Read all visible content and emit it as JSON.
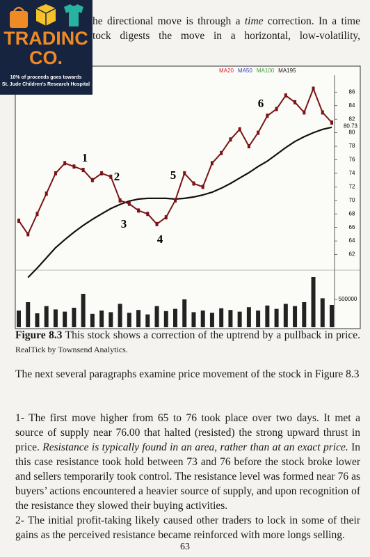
{
  "logo": {
    "name_line1": "TRADINC",
    "name_line2": "CO.",
    "tagline_line1": "10% of proceeds goes towards",
    "tagline_line2": "St. Jude Children's Research Hospital"
  },
  "top_text": {
    "line1": [
      "he directional move is through a ",
      "time",
      " correction. In a time"
    ],
    "line2": "tock digests the move in a horizontal, low-volatility,"
  },
  "chart": {
    "legend": [
      {
        "name": "MA20",
        "color": "#d8232a"
      },
      {
        "name": "MA50",
        "color": "#3b3bb0"
      },
      {
        "name": "MA100",
        "color": "#3aa03a"
      },
      {
        "name": "MA195",
        "color": "#111111"
      }
    ],
    "ylim": [
      60,
      88.5
    ],
    "yticks": [
      62,
      64,
      66,
      68,
      70,
      72,
      74,
      76,
      78,
      80,
      82,
      84,
      86
    ],
    "last_price": "80.73",
    "annotations": [
      "1",
      "2",
      "3",
      "4",
      "5",
      "6"
    ],
    "price": {
      "color": "#7a1414",
      "values": [
        67,
        65,
        68,
        71,
        74,
        75.5,
        75,
        74.5,
        73,
        74,
        73.5,
        70,
        69.5,
        68.5,
        68,
        66.5,
        67.5,
        70,
        74,
        72.5,
        72,
        75.5,
        77,
        79,
        80.5,
        78,
        80,
        82.5,
        83.5,
        85.5,
        84.5,
        83,
        86.5,
        83,
        81.5
      ]
    },
    "ma195": {
      "color": "#111111",
      "values": [
        null,
        58.6,
        60,
        61.5,
        63,
        64.2,
        65.3,
        66.3,
        67.2,
        68,
        68.8,
        69.4,
        69.9,
        70.2,
        70.3,
        70.3,
        70.3,
        70.2,
        70.3,
        70.5,
        70.8,
        71.2,
        71.8,
        72.5,
        73.3,
        74.1,
        75,
        75.8,
        76.8,
        77.8,
        78.7,
        79.4,
        80,
        80.5,
        80.8
      ]
    },
    "volume": {
      "color": "#222222",
      "ylim": [
        0,
        1000000
      ],
      "yticks": [
        500000
      ],
      "values": [
        300000,
        450000,
        250000,
        380000,
        320000,
        280000,
        350000,
        600000,
        240000,
        300000,
        270000,
        420000,
        260000,
        310000,
        230000,
        380000,
        290000,
        330000,
        500000,
        270000,
        300000,
        260000,
        340000,
        310000,
        280000,
        360000,
        300000,
        390000,
        330000,
        420000,
        380000,
        450000,
        900000,
        520000,
        400000
      ]
    }
  },
  "caption": {
    "label": "Figure 8.3",
    "text": " This stock shows a correction of the uptrend by a pullback in price.",
    "credit": " RealTick by Townsend Analytics."
  },
  "paragraphs": [
    [
      "The next several paragraphs examine price movement of the stock in Figure 8.3"
    ],
    [
      "1- The first move higher from 65 to 76 took place over two days. It met a source of supply near 76.00 that halted (resisted) the strong upward thrust in price. ",
      "Resistance is typically found in an area, rather than at an exact price.",
      " In this case resistance took hold between 73 and 76 before the stock broke lower and sellers temporarily took control.  The resistance level was formed near 76 as buyers’ actions encountered a heavier source of supply, and upon recognition of the resistance they slowed their buying activities."
    ],
    [
      "2- The initial profit-taking likely caused other traders to lock in some of their gains as the perceived resistance became reinforced with more longs selling."
    ]
  ],
  "page_number": "63"
}
